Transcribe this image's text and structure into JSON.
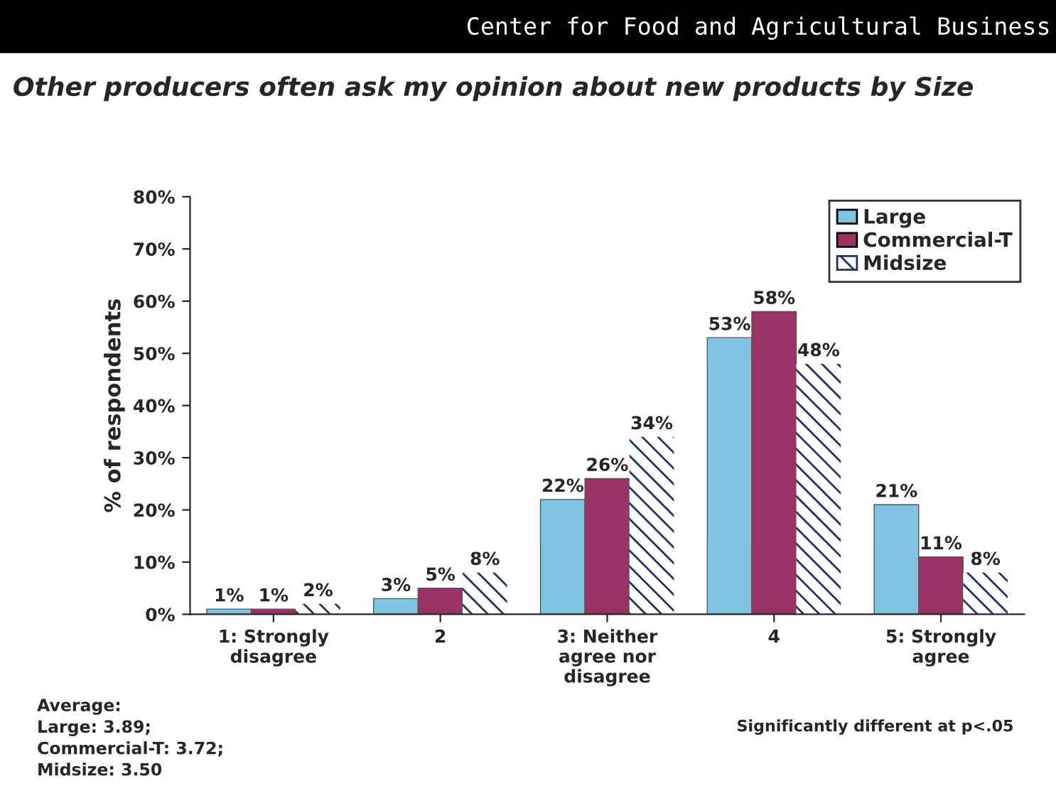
{
  "chart_data": {
    "type": "bar",
    "title": "Other producers often ask my opinion about new products by Size",
    "ylabel": "% of respondents",
    "categories": [
      "1: Strongly disagree",
      "2",
      "3: Neither agree nor disagree",
      "4",
      "5: Strongly agree"
    ],
    "series": [
      {
        "name": "Large",
        "color": "#7fc4e0",
        "values": [
          1,
          3,
          22,
          53,
          21
        ],
        "value_labels": [
          "1%",
          "3%",
          "22%",
          "53%",
          "21%"
        ]
      },
      {
        "name": "Commercial-T",
        "color": "#993366",
        "values": [
          1,
          5,
          26,
          58,
          11
        ],
        "value_labels": [
          "1%",
          "5%",
          "26%",
          "58%",
          "11%"
        ]
      },
      {
        "name": "Midsize",
        "color": "#1f3366",
        "values": [
          2,
          8,
          34,
          48,
          8
        ],
        "value_labels": [
          "2%",
          "8%",
          "34%",
          "48%",
          "8%"
        ]
      }
    ],
    "ylim": [
      0,
      80
    ],
    "yticks": [
      {
        "value": 0,
        "label": "0%"
      },
      {
        "value": 10,
        "label": "10%"
      },
      {
        "value": 20,
        "label": "20%"
      },
      {
        "value": 30,
        "label": "30%"
      },
      {
        "value": 40,
        "label": "40%"
      },
      {
        "value": 50,
        "label": "50%"
      },
      {
        "value": 60,
        "label": "60%"
      },
      {
        "value": 70,
        "label": "70%"
      },
      {
        "value": 80,
        "label": "80%"
      }
    ],
    "grid": false,
    "legend": "top right",
    "annotations": [
      "Center for Food and Agricultural Business",
      "Average:\nLarge: 3.89;\nCommercial-T: 3.72;\nMidsize: 3.50",
      "Significantly different at p<.05"
    ]
  }
}
